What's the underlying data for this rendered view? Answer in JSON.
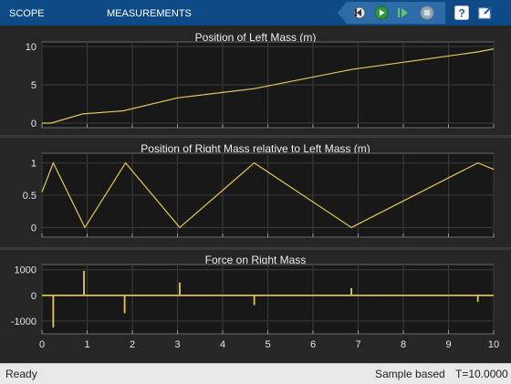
{
  "toolstrip": {
    "tabs": [
      "SCOPE",
      "MEASUREMENTS"
    ],
    "buttons": [
      {
        "name": "back-nav-icon"
      },
      {
        "name": "step-back-icon"
      },
      {
        "name": "run-icon"
      },
      {
        "name": "step-forward-icon"
      },
      {
        "name": "stop-icon"
      },
      {
        "name": "help-icon"
      },
      {
        "name": "undock-icon"
      }
    ]
  },
  "colors": {
    "toolstrip": "#0e4a86",
    "plot_bg": "#181818",
    "trace": "#e6c85a",
    "grid": "#3b3b3b"
  },
  "chart_data": [
    {
      "type": "line",
      "title": "Position of Left Mass (m)",
      "xlim": [
        0,
        10
      ],
      "ylim": [
        -0.6,
        10.6
      ],
      "yticks": [
        0,
        5,
        10
      ],
      "x": [
        0,
        0.2,
        0.9,
        1.8,
        3.0,
        4.7,
        6.85,
        9.65,
        10
      ],
      "y": [
        0,
        0,
        1.2,
        1.6,
        3.3,
        4.5,
        7.0,
        9.3,
        9.7
      ]
    },
    {
      "type": "line",
      "title": "Position of Right Mass relative to Left Mass (m)",
      "xlim": [
        0,
        10
      ],
      "ylim": [
        -0.15,
        1.15
      ],
      "yticks": [
        0,
        0.5,
        1
      ],
      "x": [
        0,
        0.25,
        0.95,
        1.85,
        3.05,
        4.7,
        6.85,
        9.65,
        10
      ],
      "y": [
        0.55,
        1.0,
        0.0,
        1.0,
        0.0,
        1.0,
        0.0,
        1.0,
        0.9
      ]
    },
    {
      "type": "line",
      "title": "Force on Right Mass",
      "xlim": [
        0,
        10
      ],
      "ylim": [
        -1500,
        1200
      ],
      "yticks": [
        -1000,
        0,
        1000
      ],
      "xticks": [
        0,
        1,
        2,
        3,
        4,
        5,
        6,
        7,
        8,
        9,
        10
      ],
      "impulses": [
        {
          "t": 0.25,
          "v": -1250
        },
        {
          "t": 0.93,
          "v": 950
        },
        {
          "t": 1.83,
          "v": -700
        },
        {
          "t": 3.05,
          "v": 500
        },
        {
          "t": 4.7,
          "v": -380
        },
        {
          "t": 6.85,
          "v": 280
        },
        {
          "t": 9.65,
          "v": -250
        }
      ]
    }
  ],
  "status": {
    "left": "Ready",
    "mode": "Sample based",
    "time": "T=10.0000"
  }
}
